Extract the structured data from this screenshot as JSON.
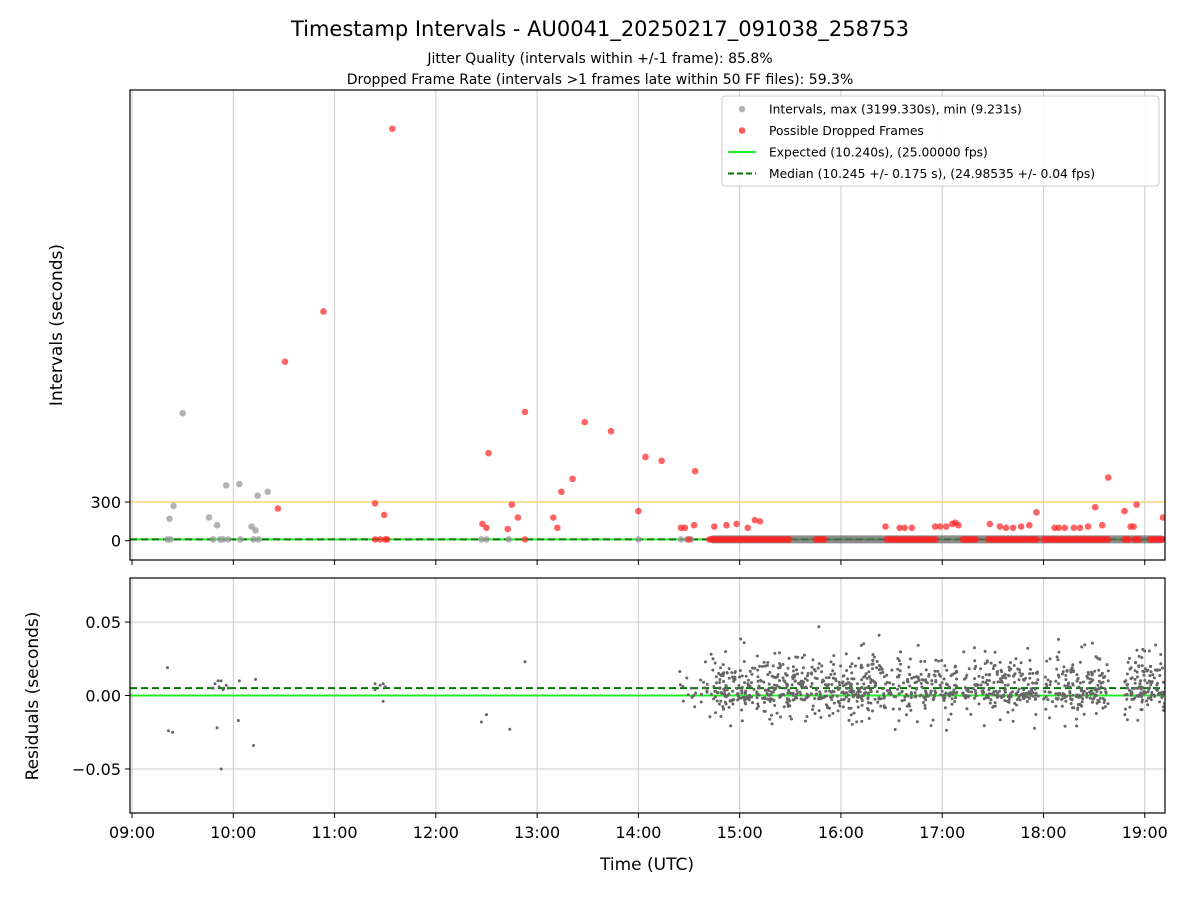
{
  "header": {
    "title": "Timestamp Intervals - AU0041_20250217_091038_258753",
    "subtitle_1": "Jitter Quality (intervals within +/-1 frame): 85.8%",
    "subtitle_2": "Dropped Frame Rate (intervals >1 frames late within 50 FF files): 59.3%"
  },
  "colors": {
    "intervals": "#999999",
    "dropped": "#ff2222",
    "expected": "#22ee22",
    "median": "#007700",
    "threshold": "#f5d67a",
    "residual_points": "#666666",
    "grid": "#cccccc"
  },
  "chart_data": [
    {
      "type": "scatter",
      "xlabel": "",
      "ylabel": "Intervals (seconds)",
      "x_axis": "time-of-day (hours UTC, shared with residuals panel)",
      "xlim": [
        8.98,
        19.2
      ],
      "ylim": [
        -150,
        3500
      ],
      "yticks": [
        0,
        300
      ],
      "grid": "vertical",
      "legend_position": "top-right",
      "legend": [
        {
          "label": "Intervals, max (3199.330s), min (9.231s)",
          "kind": "point",
          "color": "#999999"
        },
        {
          "label": "Possible Dropped Frames",
          "kind": "point",
          "color": "#ff2222"
        },
        {
          "label": "Expected (10.240s), (25.00000 fps)",
          "kind": "line",
          "color": "#22ee22"
        },
        {
          "label": "Median (10.245 +/- 0.175 s), (24.98535 +/- 0.04 fps)",
          "kind": "dashed",
          "color": "#007700"
        }
      ],
      "reference_lines": {
        "expected": 10.24,
        "median": 10.245,
        "threshold": 300
      },
      "series": [
        {
          "name": "Intervals, max (3199.330s), min (9.231s)",
          "points": [
            [
              9.35,
              10
            ],
            [
              9.37,
              170
            ],
            [
              9.38,
              10
            ],
            [
              9.41,
              270
            ],
            [
              9.5,
              990
            ],
            [
              9.76,
              180
            ],
            [
              9.8,
              10
            ],
            [
              9.84,
              120
            ],
            [
              9.87,
              10
            ],
            [
              9.9,
              10
            ],
            [
              9.93,
              430
            ],
            [
              9.95,
              10
            ],
            [
              10.06,
              440
            ],
            [
              10.07,
              10
            ],
            [
              10.18,
              110
            ],
            [
              10.2,
              10
            ],
            [
              10.22,
              80
            ],
            [
              10.24,
              350
            ],
            [
              10.25,
              10
            ],
            [
              10.34,
              380
            ],
            [
              12.45,
              10
            ],
            [
              12.5,
              10
            ],
            [
              12.72,
              10
            ],
            [
              14.0,
              10
            ],
            [
              14.42,
              10
            ],
            [
              14.48,
              10
            ],
            [
              14.52,
              10
            ]
          ],
          "baseline_band": {
            "value": 10.2,
            "x_range": [
              14.7,
              19.2
            ]
          }
        },
        {
          "name": "Possible Dropped Frames",
          "points": [
            [
              10.44,
              250
            ],
            [
              10.51,
              1390
            ],
            [
              10.89,
              1780
            ],
            [
              11.4,
              290
            ],
            [
              11.4,
              10
            ],
            [
              11.45,
              10
            ],
            [
              11.49,
              200
            ],
            [
              11.5,
              10
            ],
            [
              11.52,
              10
            ],
            [
              11.57,
              3199
            ],
            [
              12.46,
              130
            ],
            [
              12.5,
              100
            ],
            [
              12.52,
              680
            ],
            [
              12.71,
              90
            ],
            [
              12.75,
              280
            ],
            [
              12.81,
              180
            ],
            [
              12.88,
              1000
            ],
            [
              12.88,
              10
            ],
            [
              13.16,
              180
            ],
            [
              13.2,
              100
            ],
            [
              13.24,
              380
            ],
            [
              13.35,
              480
            ],
            [
              13.47,
              920
            ],
            [
              13.73,
              850
            ],
            [
              14.0,
              230
            ],
            [
              14.07,
              650
            ],
            [
              14.23,
              620
            ],
            [
              14.42,
              100
            ],
            [
              14.46,
              100
            ],
            [
              14.5,
              10
            ],
            [
              14.55,
              120
            ],
            [
              14.56,
              540
            ],
            [
              14.75,
              110
            ],
            [
              14.87,
              120
            ],
            [
              14.97,
              130
            ],
            [
              15.08,
              100
            ],
            [
              15.15,
              160
            ],
            [
              15.2,
              150
            ],
            [
              16.44,
              110
            ],
            [
              16.58,
              100
            ],
            [
              16.63,
              100
            ],
            [
              16.7,
              100
            ],
            [
              16.93,
              110
            ],
            [
              16.98,
              110
            ],
            [
              17.04,
              110
            ],
            [
              17.1,
              130
            ],
            [
              17.13,
              140
            ],
            [
              17.16,
              120
            ],
            [
              17.47,
              130
            ],
            [
              17.57,
              110
            ],
            [
              17.63,
              100
            ],
            [
              17.7,
              100
            ],
            [
              17.78,
              110
            ],
            [
              17.86,
              120
            ],
            [
              17.93,
              220
            ],
            [
              18.11,
              100
            ],
            [
              18.15,
              100
            ],
            [
              18.21,
              100
            ],
            [
              18.3,
              100
            ],
            [
              18.36,
              100
            ],
            [
              18.44,
              110
            ],
            [
              18.51,
              260
            ],
            [
              18.58,
              120
            ],
            [
              18.64,
              490
            ],
            [
              18.8,
              230
            ],
            [
              18.86,
              110
            ],
            [
              18.89,
              110
            ],
            [
              18.92,
              280
            ],
            [
              19.18,
              180
            ]
          ],
          "baseline_clusters": [
            [
              14.7,
              15.5
            ],
            [
              15.75,
              15.85
            ],
            [
              16.45,
              16.95
            ],
            [
              17.2,
              17.35
            ],
            [
              17.45,
              17.95
            ],
            [
              18.0,
              18.65
            ],
            [
              18.8,
              18.85
            ],
            [
              18.9,
              18.95
            ],
            [
              19.05,
              19.2
            ]
          ]
        }
      ]
    },
    {
      "type": "scatter",
      "xlabel": "Time (UTC)",
      "ylabel": "Residuals (seconds)",
      "xlim": [
        8.98,
        19.2
      ],
      "ylim": [
        -0.08,
        0.08
      ],
      "xticks": [
        "09:00",
        "10:00",
        "11:00",
        "12:00",
        "13:00",
        "14:00",
        "15:00",
        "16:00",
        "17:00",
        "18:00",
        "19:00"
      ],
      "xtick_values": [
        9,
        10,
        11,
        12,
        13,
        14,
        15,
        16,
        17,
        18,
        19
      ],
      "yticks": [
        "0.05",
        "0.00",
        "−0.05"
      ],
      "ytick_values": [
        0.05,
        0.0,
        -0.05
      ],
      "grid": "both",
      "reference_lines": {
        "expected": 0.0,
        "median": 0.005
      },
      "series": [
        {
          "name": "",
          "points": [
            [
              9.35,
              0.019
            ],
            [
              9.36,
              -0.024
            ],
            [
              9.4,
              -0.025
            ],
            [
              9.8,
              0.005
            ],
            [
              9.82,
              0.008
            ],
            [
              9.84,
              -0.022
            ],
            [
              9.85,
              0.01
            ],
            [
              9.86,
              0.006
            ],
            [
              9.88,
              0.01
            ],
            [
              9.88,
              -0.05
            ],
            [
              9.9,
              0.004
            ],
            [
              9.93,
              0.007
            ],
            [
              9.95,
              0.005
            ],
            [
              10.05,
              -0.017
            ],
            [
              10.06,
              0.01
            ],
            [
              10.2,
              -0.034
            ],
            [
              10.22,
              0.011
            ],
            [
              11.4,
              0.008
            ],
            [
              11.4,
              0.004
            ],
            [
              11.45,
              0.007
            ],
            [
              11.48,
              0.008
            ],
            [
              11.48,
              -0.004
            ],
            [
              11.5,
              0.006
            ],
            [
              12.45,
              -0.018
            ],
            [
              12.5,
              -0.013
            ],
            [
              12.73,
              -0.023
            ],
            [
              12.88,
              0.023
            ]
          ],
          "dense_cloud": {
            "x_range": [
              14.4,
              19.2
            ],
            "y_range": [
              -0.04,
              0.06
            ],
            "gaps": [
              [
                17.15,
                17.2
              ],
              [
                17.95,
                18.0
              ],
              [
                18.65,
                18.8
              ]
            ]
          }
        }
      ]
    }
  ]
}
